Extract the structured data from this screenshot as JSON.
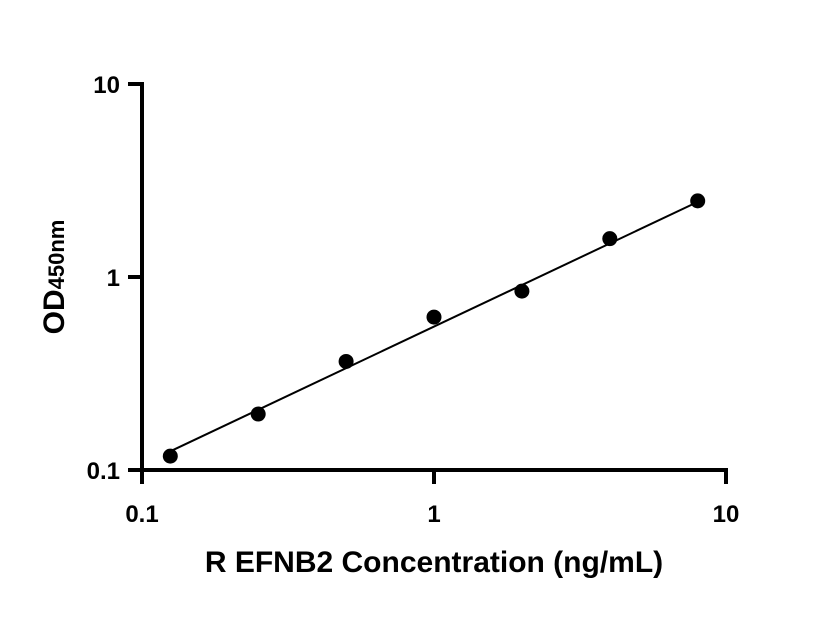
{
  "chart_data": {
    "type": "scatter",
    "title": "",
    "xlabel": "R EFNB2 Concentration (ng/mL)",
    "ylabel_main": "OD",
    "ylabel_sub": "450nm",
    "x_scale": "log",
    "y_scale": "log",
    "xlim": [
      0.1,
      10
    ],
    "ylim": [
      0.1,
      10
    ],
    "x_ticks": [
      {
        "value": 0.1,
        "label": "0.1"
      },
      {
        "value": 1,
        "label": "1"
      },
      {
        "value": 10,
        "label": "10"
      }
    ],
    "y_ticks": [
      {
        "value": 0.1,
        "label": "0.1"
      },
      {
        "value": 1,
        "label": "1"
      },
      {
        "value": 10,
        "label": "10"
      }
    ],
    "grid": false,
    "legend": "none",
    "marker_color": "#000000",
    "fit_line": {
      "x": [
        0.125,
        8
      ],
      "y": [
        0.125,
        2.45
      ]
    },
    "series": [
      {
        "points": [
          {
            "x": 0.125,
            "y": 0.118
          },
          {
            "x": 0.25,
            "y": 0.195
          },
          {
            "x": 0.5,
            "y": 0.365
          },
          {
            "x": 1,
            "y": 0.62
          },
          {
            "x": 2,
            "y": 0.845
          },
          {
            "x": 4,
            "y": 1.58
          },
          {
            "x": 8,
            "y": 2.48
          }
        ]
      }
    ]
  }
}
